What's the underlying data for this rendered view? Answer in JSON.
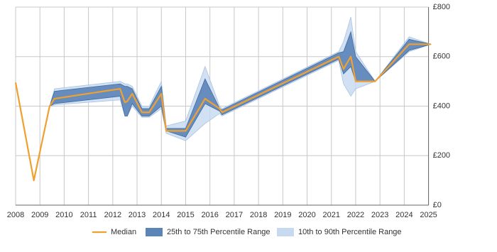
{
  "chart_data": {
    "type": "band-line",
    "x": [
      2008.0,
      2008.75,
      2009.4,
      2009.6,
      2012.3,
      2012.5,
      2012.6,
      2012.8,
      2013.2,
      2013.5,
      2014.0,
      2014.2,
      2015.0,
      2015.8,
      2016.4,
      2016.5,
      2021.3,
      2021.5,
      2021.8,
      2022.0,
      2022.8,
      2024.2,
      2025.1
    ],
    "series": [
      {
        "name": "10th to 90th Percentile Range",
        "color": "#c6d9f0",
        "lower": [
          495,
          100,
          400,
          405,
          425,
          360,
          360,
          400,
          355,
          355,
          390,
          290,
          260,
          330,
          370,
          360,
          585,
          490,
          440,
          470,
          500,
          620,
          650
        ],
        "upper": [
          495,
          100,
          400,
          470,
          500,
          490,
          490,
          480,
          400,
          400,
          500,
          320,
          340,
          560,
          400,
          390,
          620,
          660,
          760,
          620,
          500,
          680,
          650
        ]
      },
      {
        "name": "25th to 75th Percentile Range",
        "color": "#5b84b8",
        "lower": [
          495,
          100,
          400,
          410,
          440,
          360,
          360,
          410,
          360,
          360,
          400,
          300,
          275,
          410,
          380,
          365,
          590,
          530,
          560,
          500,
          500,
          625,
          650
        ],
        "upper": [
          495,
          100,
          400,
          460,
          490,
          480,
          480,
          470,
          390,
          390,
          480,
          310,
          310,
          510,
          390,
          385,
          615,
          620,
          700,
          600,
          500,
          670,
          650
        ]
      },
      {
        "name": "Median",
        "color": "#f0a030",
        "values": [
          495,
          100,
          400,
          430,
          470,
          415,
          420,
          450,
          375,
          375,
          450,
          300,
          300,
          430,
          390,
          375,
          600,
          550,
          600,
          500,
          500,
          650,
          650
        ]
      }
    ],
    "xlim": [
      2008,
      2025.1
    ],
    "xticks": [
      2008,
      2009,
      2010,
      2011,
      2012,
      2013,
      2014,
      2015,
      2016,
      2017,
      2018,
      2019,
      2020,
      2021,
      2022,
      2023,
      2024,
      2025
    ],
    "ylim": [
      0,
      800
    ],
    "yticks": [
      {
        "value": 0,
        "label": "£0"
      },
      {
        "value": 200,
        "label": "£200"
      },
      {
        "value": 400,
        "label": "£400"
      },
      {
        "value": 600,
        "label": "£600"
      },
      {
        "value": 800,
        "label": "£800"
      }
    ],
    "grid": true,
    "legend": "bottom"
  }
}
